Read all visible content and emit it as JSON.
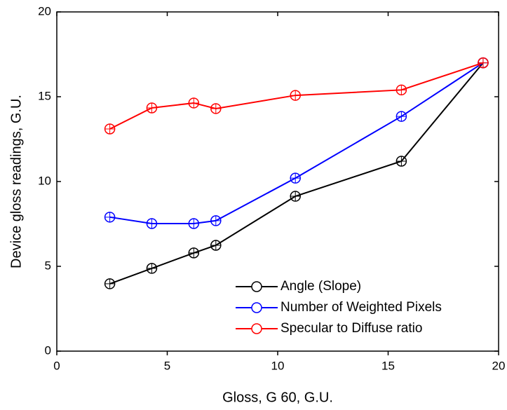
{
  "chart_data": {
    "type": "line",
    "x_label": "Gloss, G 60, G.U.",
    "y_label": "Device gloss readings, G.U.",
    "x": [
      2.4,
      4.3,
      6.2,
      7.2,
      10.8,
      15.6,
      19.3
    ],
    "series": [
      {
        "name": "Angle (Slope)",
        "color": "#000000",
        "values": [
          3.97,
          4.88,
          5.79,
          6.24,
          9.13,
          11.2,
          17.0
        ]
      },
      {
        "name": "Number of Weighted Pixels",
        "color": "#0000ff",
        "values": [
          7.9,
          7.52,
          7.52,
          7.69,
          10.2,
          13.84,
          17.0
        ]
      },
      {
        "name": "Specular to Diffuse ratio",
        "color": "#ff0000",
        "values": [
          13.1,
          14.34,
          14.63,
          14.3,
          15.08,
          15.4,
          17.0
        ]
      }
    ],
    "xlim": [
      0,
      20
    ],
    "xticks": [
      0,
      5,
      10,
      15,
      20
    ],
    "ylim": [
      0,
      20
    ],
    "yticks": [
      0,
      5,
      10,
      15,
      20
    ],
    "legend": "lower right"
  }
}
